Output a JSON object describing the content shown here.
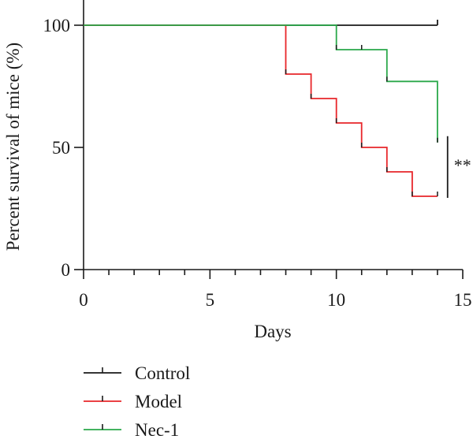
{
  "chart_data": {
    "type": "line",
    "step": true,
    "xlabel": "Days",
    "ylabel": "Percent survival of mice (%)",
    "xlim": [
      0,
      15
    ],
    "ylim": [
      0,
      100
    ],
    "x_ticks": [
      "0",
      "5",
      "10",
      "15"
    ],
    "x_minor_tick_values": [
      1,
      2,
      3,
      4,
      6,
      7,
      8,
      9,
      11,
      12,
      13,
      14
    ],
    "y_ticks": [
      "0",
      "50",
      "100"
    ],
    "grid": false,
    "legend_position": "bottom-left",
    "series": [
      {
        "name": "Control",
        "color": "#1a1a1a",
        "points": [
          [
            0,
            100
          ],
          [
            14,
            100
          ]
        ],
        "censor_marks": [
          [
            14,
            100
          ]
        ],
        "censor_mark_style": "horizontal"
      },
      {
        "name": "Model",
        "color": "#e8262a",
        "points": [
          [
            0,
            100
          ],
          [
            8,
            100
          ],
          [
            8,
            80
          ],
          [
            9,
            80
          ],
          [
            9,
            70
          ],
          [
            10,
            70
          ],
          [
            10,
            60
          ],
          [
            11,
            60
          ],
          [
            11,
            50
          ],
          [
            12,
            50
          ],
          [
            12,
            40
          ],
          [
            13,
            40
          ],
          [
            13,
            30
          ],
          [
            14,
            30
          ]
        ],
        "censor_marks": [
          [
            8,
            80
          ],
          [
            9,
            70
          ],
          [
            10,
            60
          ],
          [
            11,
            50
          ],
          [
            12,
            40
          ],
          [
            13,
            30
          ],
          [
            14,
            30
          ]
        ]
      },
      {
        "name": "Nec-1",
        "color": "#2aa84a",
        "points": [
          [
            0,
            100
          ],
          [
            10,
            100
          ],
          [
            10,
            90
          ],
          [
            12,
            90
          ],
          [
            12,
            77
          ],
          [
            14,
            77
          ],
          [
            14,
            52
          ]
        ],
        "censor_marks": [
          [
            10,
            90
          ],
          [
            11,
            90
          ],
          [
            12,
            77
          ],
          [
            14,
            52
          ]
        ]
      }
    ],
    "annotations": [
      {
        "text": "**",
        "type": "significance_bracket",
        "x": 14.4,
        "y_range": [
          30,
          52
        ]
      }
    ]
  }
}
